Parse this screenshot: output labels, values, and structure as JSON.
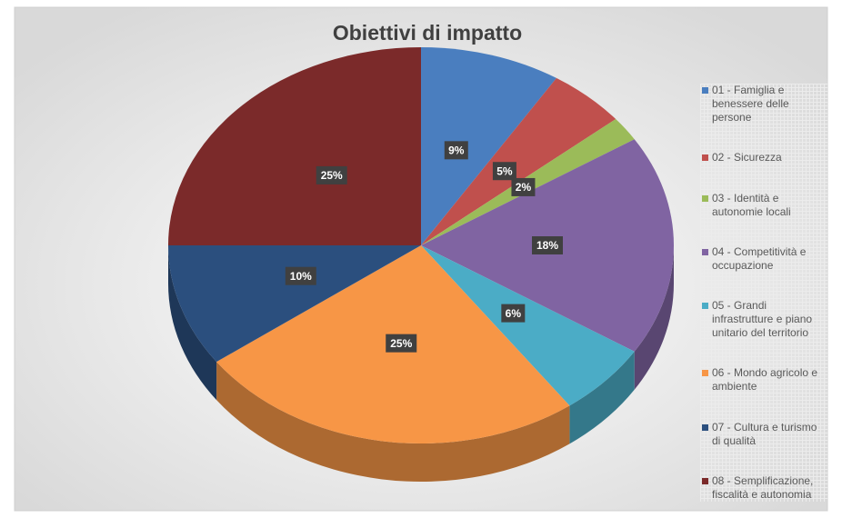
{
  "chart_data": {
    "type": "pie",
    "title": "Obiettivi di impatto",
    "categories": [
      "01 - Famiglia e benessere delle persone",
      "02 - Sicurezza",
      "03 - Identità e autonomie locali",
      "04 - Competitività e occupazione",
      "05 - Grandi infrastrutture e piano unitario del territorio",
      "06 - Mondo agricolo e ambiente",
      "07 - Cultura e turismo di qualità",
      "08 - Semplificazione, fiscalità e autonomia"
    ],
    "values": [
      9,
      5,
      2,
      18,
      6,
      25,
      10,
      25
    ],
    "value_labels": [
      "9%",
      "5%",
      "2%",
      "18%",
      "6%",
      "25%",
      "10%",
      "25%"
    ],
    "colors": [
      "#4a7ebf",
      "#c0504d",
      "#9bbb59",
      "#8064a2",
      "#4bacc6",
      "#f79646",
      "#2b4f7e",
      "#7b2a2a"
    ],
    "legend": "right"
  }
}
